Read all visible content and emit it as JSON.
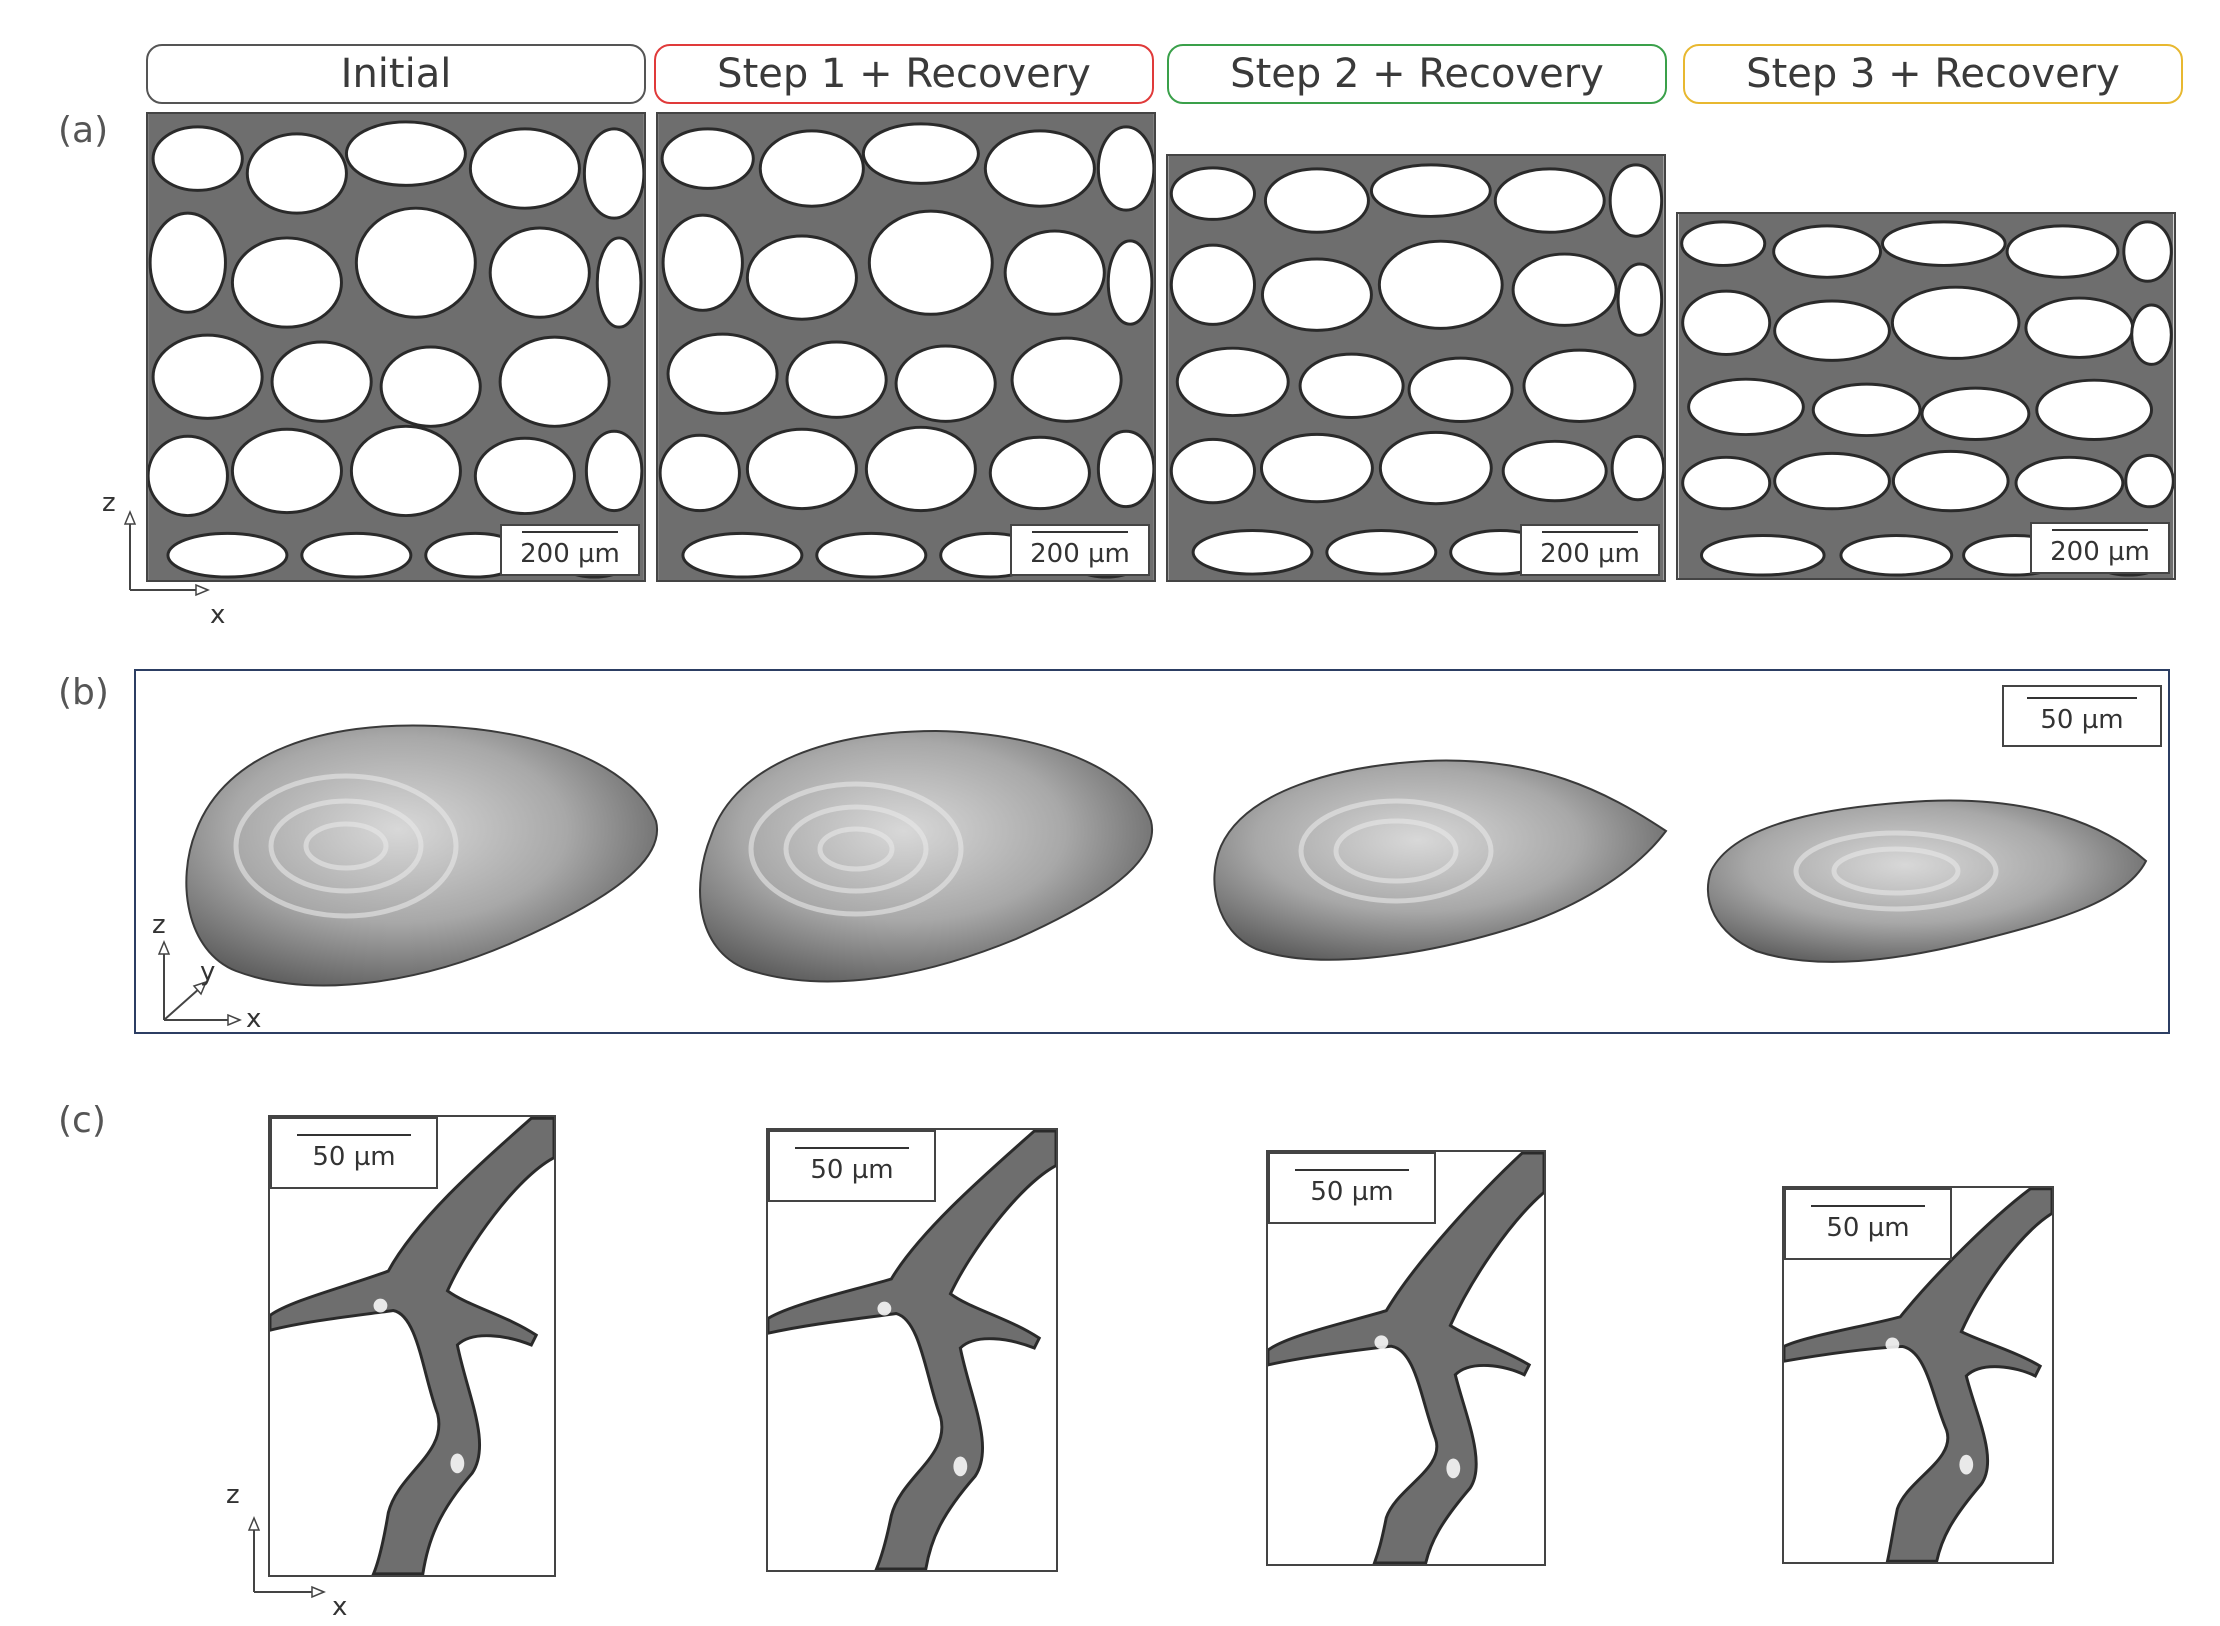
{
  "headers": [
    {
      "label": "Initial",
      "color": "#555555"
    },
    {
      "label": "Step 1 + Recovery",
      "color": "#e03a3a"
    },
    {
      "label": "Step 2 + Recovery",
      "color": "#3aa04a"
    },
    {
      "label": "Step 3 + Recovery",
      "color": "#e8b830"
    }
  ],
  "panel_labels": {
    "a": "(a)",
    "b": "(b)",
    "c": "(c)"
  },
  "scale_bars": {
    "a": "200 µm",
    "b": "50 µm",
    "c": "50 µm"
  },
  "axes": {
    "x": "x",
    "y": "y",
    "z": "z"
  },
  "colors": {
    "strut": "#6e6e6e",
    "strut_edge": "#2a2a2a",
    "frame_b": "#2c3e63"
  }
}
